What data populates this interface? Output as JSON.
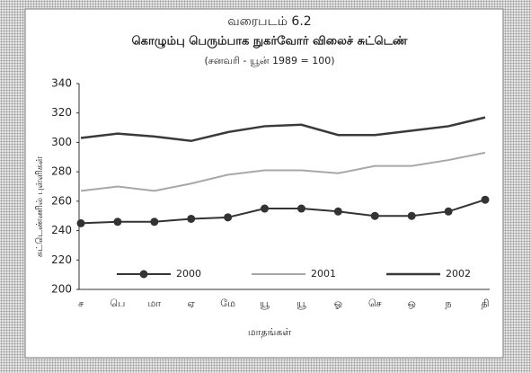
{
  "chart_data": {
    "type": "line",
    "title": "வரைபடம் 6.2",
    "subtitle": "கொழும்பு பெரும்பாக நுகர்வோர் விலைச் சுட்டெண்",
    "note": "(சனவரி - யூன் 1989 = 100)",
    "y_label": "சுட்டெண்ணில் புள்ளிகள்",
    "x_label": "மாதங்கள்",
    "categories": [
      "ச",
      "பெ",
      "மா",
      "ஏ",
      "மே",
      "யூ",
      "யூ",
      "ஓ",
      "செ",
      "ஒ",
      "ந",
      "தி"
    ],
    "series": [
      {
        "name": "2000",
        "color": "#333333",
        "width": 2,
        "marker": true,
        "values": [
          245,
          246,
          246,
          248,
          249,
          255,
          255,
          253,
          250,
          250,
          253,
          261
        ]
      },
      {
        "name": "2001",
        "color": "#a8a8a8",
        "width": 2,
        "marker": false,
        "values": [
          267,
          270,
          267,
          272,
          278,
          281,
          281,
          279,
          284,
          284,
          288,
          293
        ]
      },
      {
        "name": "2002",
        "color": "#3a3a3a",
        "width": 2.5,
        "marker": false,
        "values": [
          303,
          306,
          304,
          301,
          307,
          311,
          312,
          305,
          305,
          308,
          311,
          317
        ]
      }
    ],
    "ylim": [
      200,
      340
    ],
    "yticks": [
      200,
      220,
      240,
      260,
      280,
      300,
      320,
      340
    ],
    "grid": false
  }
}
